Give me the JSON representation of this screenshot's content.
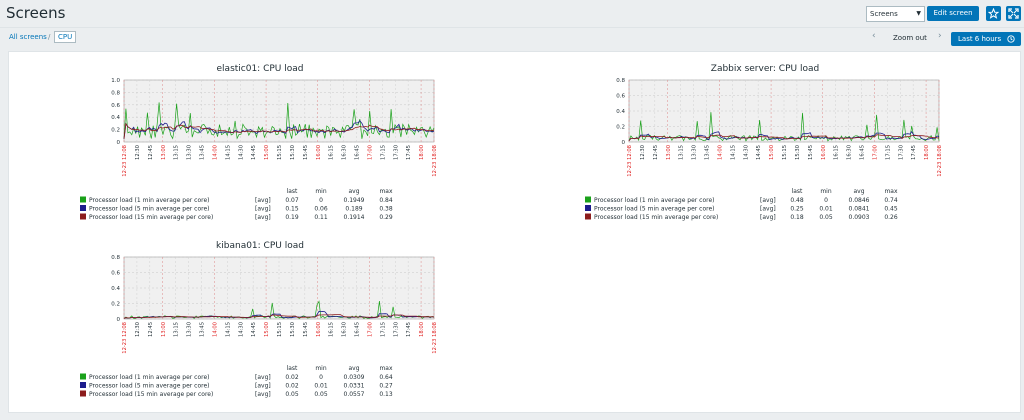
{
  "header": {
    "title": "Screens",
    "screens_select": "Screens",
    "edit_label": "Edit screen",
    "star_icon": "star-icon",
    "fullscreen_icon": "fullscreen-icon"
  },
  "breadcrumb": {
    "all": "All screens",
    "sep": "/",
    "current": "CPU"
  },
  "timebar": {
    "zoom_out": "Zoom out",
    "last": "Last 6 hours",
    "prev": "‹",
    "next": "›"
  },
  "colors": {
    "one": "#1aa11a",
    "five": "#1c1c8c",
    "fifteen": "#8c1c1c",
    "red": "#e02020",
    "accent": "#0275b8"
  },
  "graphs": [
    {
      "title": "elastic01: CPU load",
      "yticks": [
        "1.0",
        "0.8",
        "0.6",
        "0.4",
        "0.2",
        "0"
      ],
      "ymax": 1.0,
      "legend_header": [
        "last",
        "min",
        "avg",
        "max"
      ],
      "rows": [
        {
          "name": "Processor load (1 min average per core)",
          "agg": "[avg]",
          "last": "0.07",
          "min": "0",
          "avg": "0.1949",
          "max": "0.84"
        },
        {
          "name": "Processor load (5 min average per core)",
          "agg": "[avg]",
          "last": "0.15",
          "min": "0.06",
          "avg": "0.189",
          "max": "0.38"
        },
        {
          "name": "Processor load (15 min average per core)",
          "agg": "[avg]",
          "last": "0.19",
          "min": "0.11",
          "avg": "0.1914",
          "max": "0.29"
        }
      ]
    },
    {
      "title": "Zabbix server: CPU load",
      "yticks": [
        "0.8",
        "0.6",
        "0.4",
        "0.2",
        "0"
      ],
      "ymax": 0.8,
      "legend_header": [
        "last",
        "min",
        "avg",
        "max"
      ],
      "rows": [
        {
          "name": "Processor load (1 min average per core)",
          "agg": "[avg]",
          "last": "0.48",
          "min": "0",
          "avg": "0.0846",
          "max": "0.74"
        },
        {
          "name": "Processor load (5 min average per core)",
          "agg": "[avg]",
          "last": "0.25",
          "min": "0.01",
          "avg": "0.0841",
          "max": "0.45"
        },
        {
          "name": "Processor load (15 min average per core)",
          "agg": "[avg]",
          "last": "0.18",
          "min": "0.05",
          "avg": "0.0903",
          "max": "0.26"
        }
      ]
    },
    {
      "title": "kibana01: CPU load",
      "yticks": [
        "0.8",
        "0.6",
        "0.4",
        "0.2",
        "0"
      ],
      "ymax": 0.8,
      "legend_header": [
        "last",
        "min",
        "avg",
        "max"
      ],
      "rows": [
        {
          "name": "Processor load (1 min average per core)",
          "agg": "[avg]",
          "last": "0.02",
          "min": "0",
          "avg": "0.0309",
          "max": "0.64"
        },
        {
          "name": "Processor load (5 min average per core)",
          "agg": "[avg]",
          "last": "0.02",
          "min": "0.01",
          "avg": "0.0331",
          "max": "0.27"
        },
        {
          "name": "Processor load (15 min average per core)",
          "agg": "[avg]",
          "last": "0.05",
          "min": "0.05",
          "avg": "0.0557",
          "max": "0.13"
        }
      ]
    }
  ],
  "xlabels": [
    "12-23 12:08",
    "12:30",
    "12:45",
    "13:00",
    "13:15",
    "13:30",
    "13:45",
    "14:00",
    "14:15",
    "14:30",
    "14:45",
    "15:00",
    "15:15",
    "15:30",
    "15:45",
    "16:00",
    "16:15",
    "16:30",
    "16:45",
    "17:00",
    "17:15",
    "17:30",
    "17:45",
    "18:00",
    "12-23 18:08"
  ],
  "xlabel_red": [
    true,
    false,
    false,
    true,
    false,
    false,
    false,
    true,
    false,
    false,
    false,
    true,
    false,
    false,
    false,
    true,
    false,
    false,
    false,
    true,
    false,
    false,
    false,
    true,
    true
  ]
}
